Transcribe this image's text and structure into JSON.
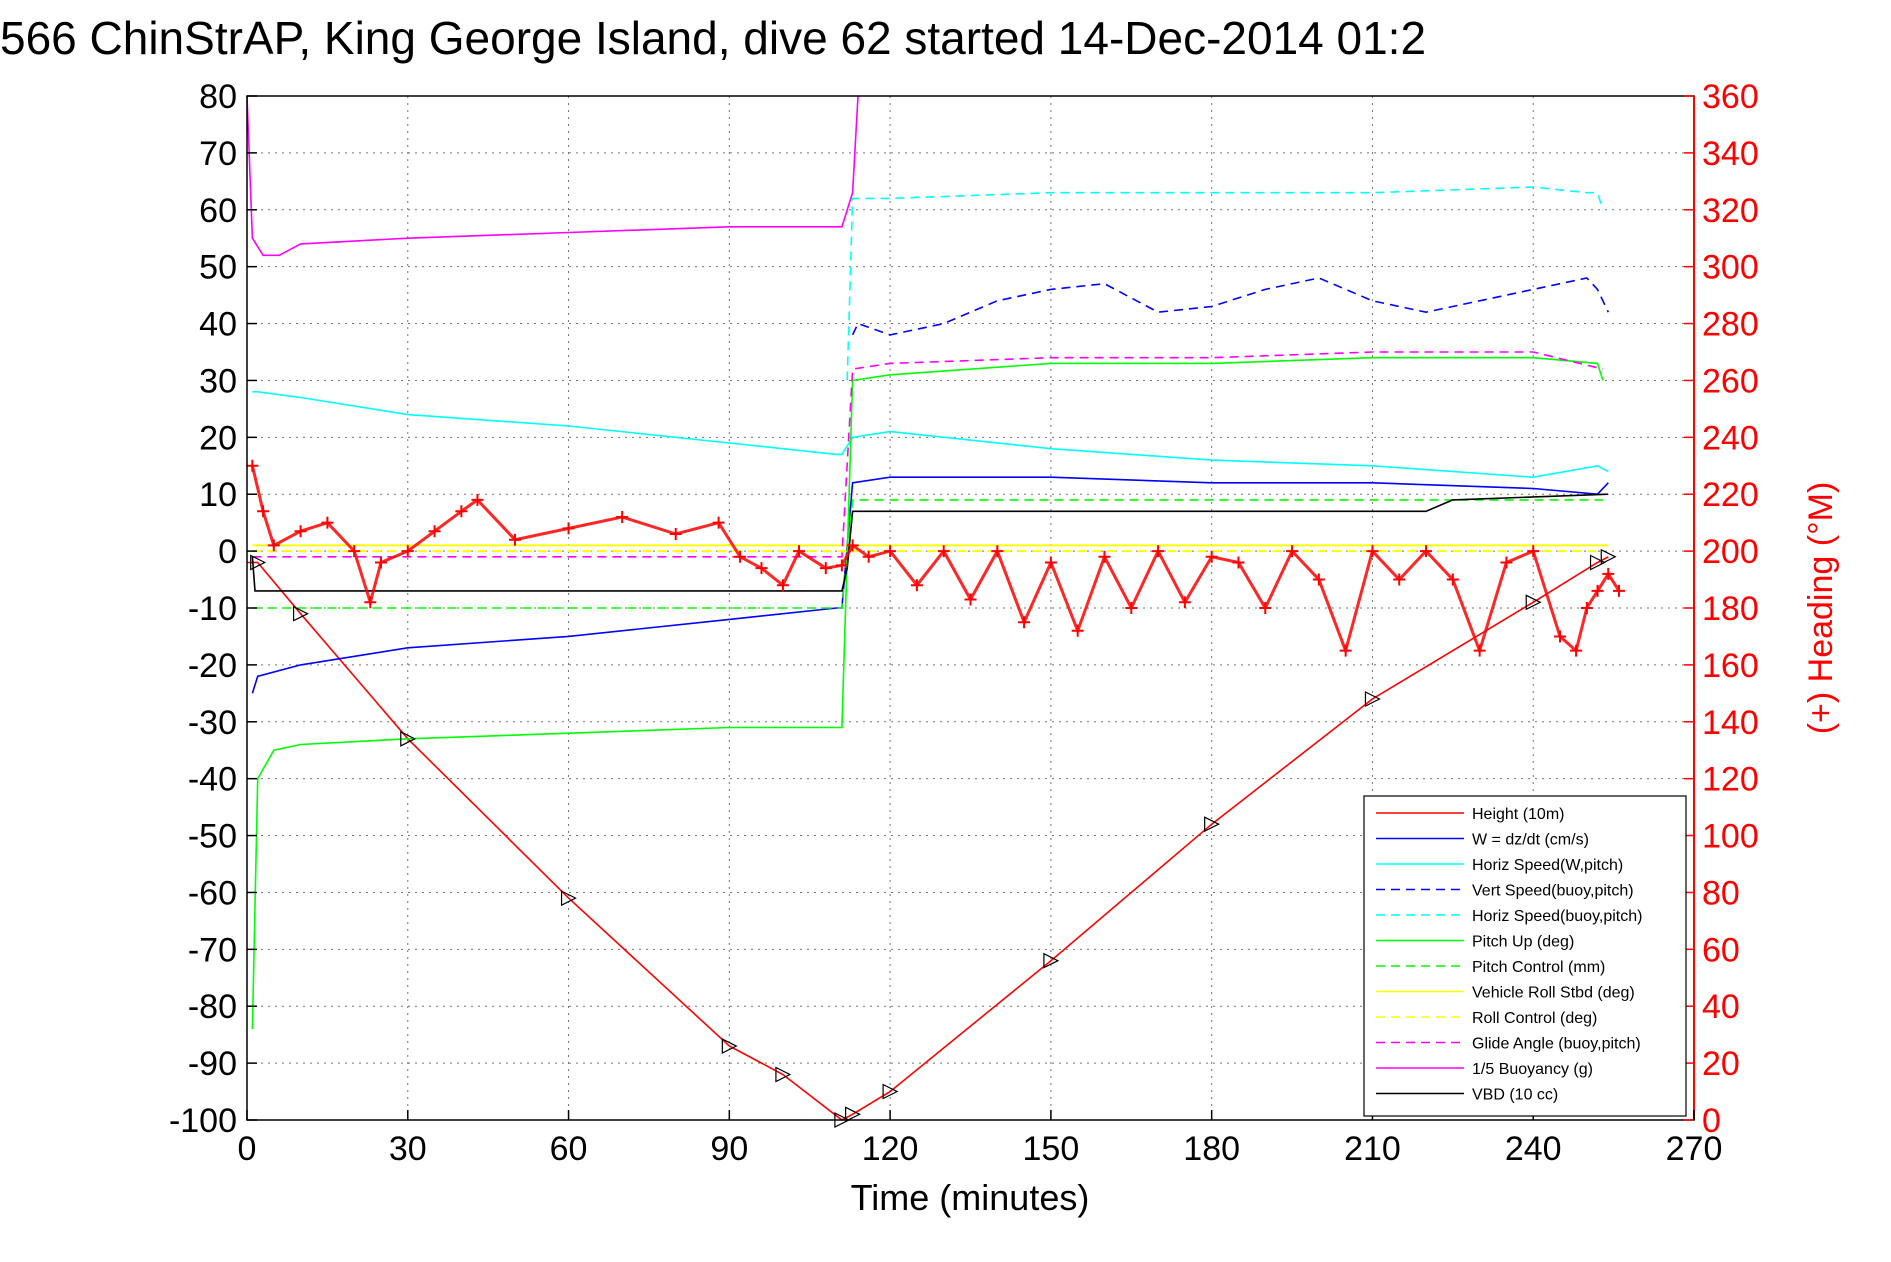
{
  "chart_data": {
    "type": "line",
    "title": "566 ChinStrAP, King George Island, dive 62 started 14-Dec-2014 01:2",
    "xlabel": "Time (minutes)",
    "ylabel_right": "(+) Heading (°M)",
    "xlim": [
      0,
      270
    ],
    "ylim_left": [
      -100,
      80
    ],
    "ylim_right": [
      0,
      360
    ],
    "x_ticks": [
      "0",
      "30",
      "60",
      "90",
      "120",
      "150",
      "180",
      "210",
      "240",
      "270"
    ],
    "y_ticks_left": [
      "80",
      "70",
      "60",
      "50",
      "40",
      "30",
      "20",
      "10",
      "0",
      "-10",
      "-20",
      "-30",
      "-40",
      "-50",
      "-60",
      "-70",
      "-80",
      "-90",
      "-100"
    ],
    "y_ticks_right": [
      "360",
      "340",
      "320",
      "300",
      "280",
      "260",
      "240",
      "220",
      "200",
      "180",
      "160",
      "140",
      "120",
      "100",
      "80",
      "60",
      "40",
      "20",
      "0"
    ],
    "grid": true,
    "legend_position": "bottom-right",
    "series": [
      {
        "name": "Height (10m)",
        "color": "#ff0000",
        "style": "solid",
        "x": [
          0,
          2,
          10,
          30,
          60,
          90,
          100,
          111,
          113,
          120,
          150,
          180,
          210,
          240,
          252,
          254
        ],
        "y": [
          -2,
          -2,
          -11,
          -33,
          -61,
          -87,
          -92,
          -100,
          -99,
          -95,
          -72,
          -48,
          -26,
          -9,
          -2,
          -1
        ]
      },
      {
        "name": "W = dz/dt (cm/s)",
        "color": "#0000ff",
        "style": "solid",
        "x": [
          1,
          2,
          10,
          30,
          60,
          90,
          110,
          111,
          113,
          120,
          150,
          180,
          210,
          240,
          252,
          254
        ],
        "y": [
          -25,
          -22,
          -20,
          -17,
          -15,
          -12,
          -10,
          -10,
          12,
          13,
          13,
          12,
          12,
          11,
          10,
          12
        ]
      },
      {
        "name": "Horiz Speed(W,pitch)",
        "color": "#00ffff",
        "style": "solid",
        "x": [
          1,
          2,
          10,
          30,
          60,
          90,
          110,
          111,
          113,
          120,
          150,
          180,
          210,
          240,
          252,
          254
        ],
        "y": [
          28,
          28,
          27,
          24,
          22,
          19,
          17,
          17,
          20,
          21,
          18,
          16,
          15,
          13,
          15,
          14
        ]
      },
      {
        "name": "Vert Speed(buoy,pitch)",
        "color": "#0000ff",
        "style": "dashed",
        "x": [
          113,
          114,
          120,
          130,
          140,
          150,
          160,
          170,
          180,
          190,
          200,
          210,
          220,
          230,
          240,
          250,
          252,
          254
        ],
        "y": [
          38,
          40,
          38,
          40,
          44,
          46,
          47,
          42,
          43,
          46,
          48,
          44,
          42,
          44,
          46,
          48,
          46,
          42
        ]
      },
      {
        "name": "Horiz Speed(buoy,pitch)",
        "color": "#00ffff",
        "style": "dashed",
        "x": [
          112,
          113,
          120,
          150,
          180,
          210,
          240,
          250,
          252,
          253
        ],
        "y": [
          30,
          62,
          62,
          63,
          63,
          63,
          64,
          63,
          63,
          60
        ]
      },
      {
        "name": "Pitch Up (deg)",
        "color": "#00ff00",
        "style": "solid",
        "x": [
          1,
          2,
          5,
          10,
          30,
          60,
          90,
          110,
          111,
          113,
          120,
          150,
          180,
          210,
          240,
          252,
          253
        ],
        "y": [
          -84,
          -40,
          -35,
          -34,
          -33,
          -32,
          -31,
          -31,
          -31,
          30,
          31,
          33,
          33,
          34,
          34,
          33,
          30
        ]
      },
      {
        "name": "Pitch Control (mm)",
        "color": "#00ff00",
        "style": "dashed",
        "x": [
          1,
          111,
          113,
          253
        ],
        "y": [
          -10,
          -10,
          9,
          9
        ]
      },
      {
        "name": "Vehicle Roll Stbd (deg)",
        "color": "#ffff00",
        "style": "solid",
        "x": [
          1,
          30,
          60,
          90,
          111,
          113,
          150,
          180,
          210,
          240,
          254
        ],
        "y": [
          1,
          1,
          1,
          1,
          1,
          1,
          1,
          1,
          1,
          1,
          1
        ]
      },
      {
        "name": "Roll Control (deg)",
        "color": "#ffff00",
        "style": "dashed",
        "x": [
          1,
          111,
          113,
          253
        ],
        "y": [
          0,
          0,
          0,
          0
        ]
      },
      {
        "name": "Glide Angle (buoy,pitch)",
        "color": "#ff00ff",
        "style": "dashed",
        "x": [
          1,
          111,
          113,
          120,
          150,
          180,
          210,
          240,
          253
        ],
        "y": [
          -1,
          -1,
          32,
          33,
          34,
          34,
          35,
          35,
          32
        ]
      },
      {
        "name": "1/5 Buoyancy (g)",
        "color": "#ff00ff",
        "style": "solid",
        "x": [
          0,
          1,
          3,
          6,
          10,
          30,
          60,
          90,
          110,
          111,
          113,
          114
        ],
        "y": [
          80,
          55,
          52,
          52,
          54,
          55,
          56,
          57,
          57,
          57,
          63,
          80
        ]
      },
      {
        "name": "VBD (10 cc)",
        "color": "#000000",
        "style": "solid",
        "x": [
          1,
          1.5,
          2,
          111,
          112,
          113,
          140,
          180,
          220,
          225,
          254
        ],
        "y": [
          -1,
          -7,
          -7,
          -7,
          -3,
          7,
          7,
          7,
          7,
          9,
          10
        ]
      }
    ],
    "heading_series": {
      "axis": "right",
      "color": "#ff0000",
      "marker": "+",
      "x": [
        1,
        3,
        5,
        10,
        15,
        20,
        23,
        25,
        30,
        35,
        40,
        43,
        50,
        60,
        70,
        80,
        88,
        92,
        96,
        100,
        103,
        108,
        111,
        113,
        116,
        120,
        125,
        130,
        135,
        140,
        145,
        150,
        155,
        160,
        165,
        170,
        175,
        180,
        185,
        190,
        195,
        200,
        205,
        210,
        215,
        220,
        225,
        230,
        235,
        240,
        245,
        248,
        250,
        252,
        254,
        256
      ],
      "y": [
        230,
        214,
        202,
        207,
        210,
        200,
        182,
        196,
        200,
        207,
        214,
        218,
        204,
        208,
        212,
        206,
        210,
        198,
        194,
        188,
        200,
        194,
        195,
        202,
        198,
        200,
        188,
        200,
        183,
        200,
        175,
        196,
        172,
        198,
        180,
        200,
        182,
        198,
        196,
        180,
        200,
        190,
        165,
        200,
        190,
        200,
        190,
        165,
        196,
        200,
        170,
        165,
        180,
        186,
        192,
        186
      ]
    }
  }
}
